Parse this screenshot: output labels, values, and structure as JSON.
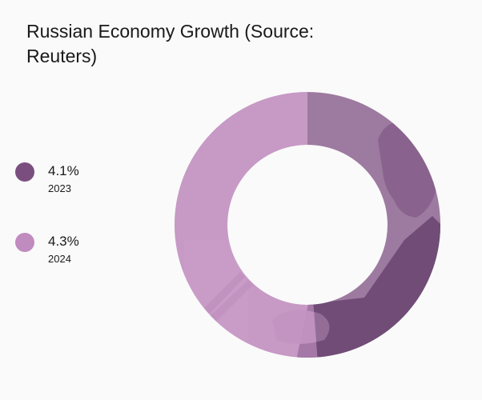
{
  "chart_data": {
    "type": "pie",
    "title": "Russian Economy Growth (Source: Reuters)",
    "donut": true,
    "categories": [
      "2023",
      "2024"
    ],
    "values": [
      4.1,
      4.3
    ],
    "value_labels": [
      "4.1%",
      "4.3%"
    ],
    "unit": "%",
    "legend_position": "left",
    "colors": [
      "#7a4f80",
      "#c08bbf"
    ],
    "background_photo_overlay": true
  }
}
